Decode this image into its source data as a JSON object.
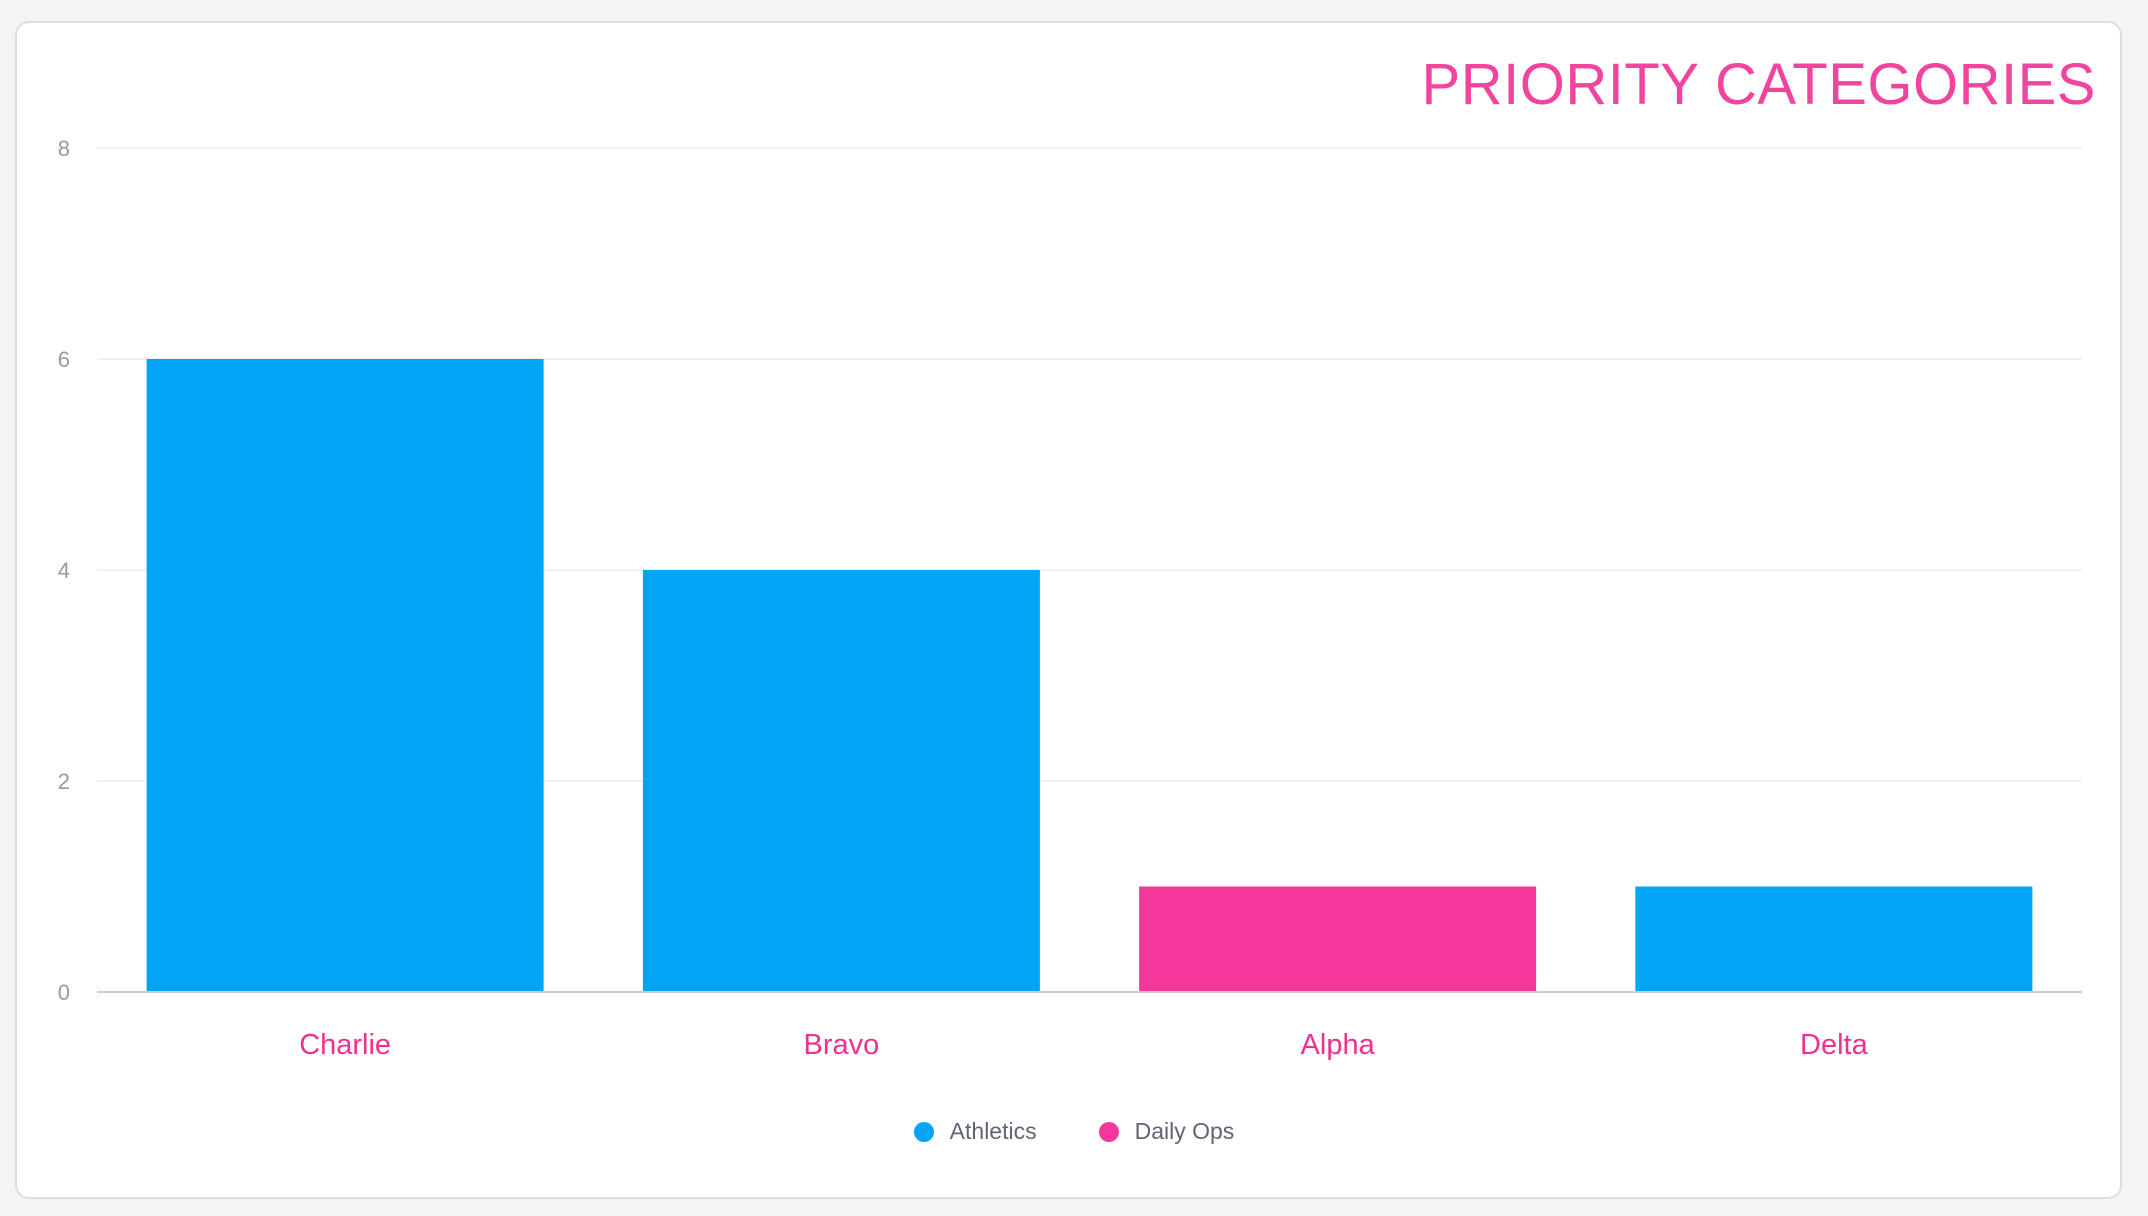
{
  "chart_data": {
    "type": "bar",
    "title": "PRIORITY CATEGORIES",
    "xlabel": "",
    "ylabel": "",
    "categories": [
      "Charlie",
      "Bravo",
      "Alpha",
      "Delta"
    ],
    "values": [
      6,
      4,
      1,
      1
    ],
    "bar_series": [
      "Athletics",
      "Athletics",
      "Daily Ops",
      "Athletics"
    ],
    "series": [
      {
        "name": "Athletics",
        "color": "#02a4f4"
      },
      {
        "name": "Daily Ops",
        "color": "#f5369a"
      }
    ],
    "ylim": [
      0,
      8
    ],
    "yticks": [
      "0",
      "2",
      "4",
      "6",
      "8"
    ],
    "grid": true,
    "legend_position": "bottom-center",
    "colors": {
      "title": "#f0449e",
      "category_label": "#f0308f",
      "tick_label": "#9a9a9a",
      "grid": "#ececec",
      "axis": "#cccccc"
    }
  }
}
